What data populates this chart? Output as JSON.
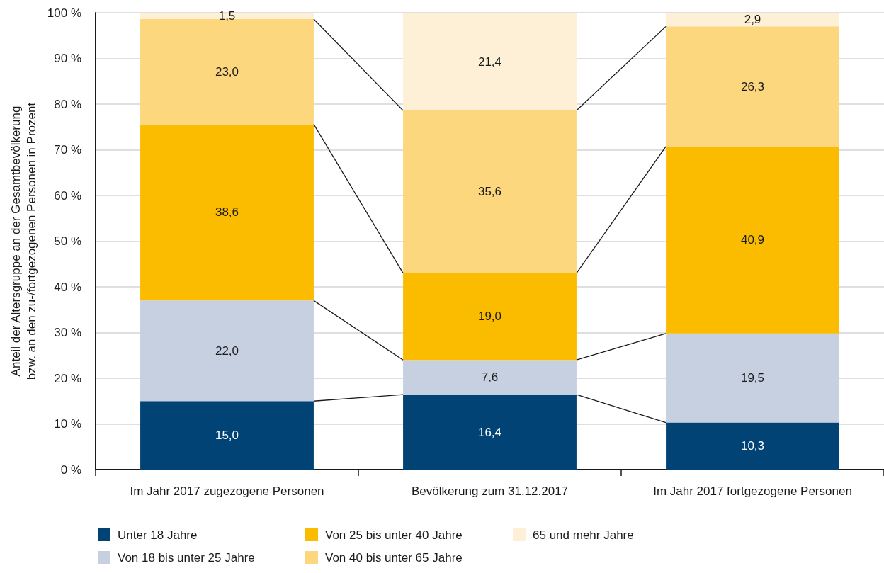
{
  "chart_data": {
    "type": "bar",
    "stacked": true,
    "ylabel": "Anteil der Altersgruppe an der Gesamtbevölkerung\nbzw. an den zu-/fortgezogenen Personen in Prozent",
    "categories": [
      "Im Jahr 2017 zugezogene Personen",
      "Bevölkerung zum 31.12.2017",
      "Im Jahr 2017 fortgezogene Personen"
    ],
    "series": [
      {
        "name": "Unter 18 Jahre",
        "color": "#004374",
        "values": [
          15.0,
          16.4,
          10.3
        ],
        "value_labels": [
          "15,0",
          "16,4",
          "10,3"
        ]
      },
      {
        "name": "Von 18 bis unter 25 Jahre",
        "color": "#c6d0e1",
        "values": [
          22.0,
          7.6,
          19.5
        ],
        "value_labels": [
          "22,0",
          "7,6",
          "19,5"
        ]
      },
      {
        "name": "Von 25 bis unter 40 Jahre",
        "color": "#fbbc00",
        "values": [
          38.6,
          19.0,
          40.9
        ],
        "value_labels": [
          "38,6",
          "19,0",
          "40,9"
        ]
      },
      {
        "name": "Von 40 bis unter 65 Jahre",
        "color": "#fdd77e",
        "values": [
          23.0,
          35.6,
          26.3
        ],
        "value_labels": [
          "23,0",
          "35,6",
          "26,3"
        ]
      },
      {
        "name": "65 und mehr Jahre",
        "color": "#fef0d6",
        "values": [
          1.5,
          21.4,
          2.9
        ],
        "value_labels": [
          "1,5",
          "21,4",
          "2,9"
        ]
      }
    ],
    "ylim": [
      0,
      100
    ],
    "yticks": [
      {
        "value": 0,
        "label": "0 %"
      },
      {
        "value": 10,
        "label": "10 %"
      },
      {
        "value": 20,
        "label": "20 %"
      },
      {
        "value": 30,
        "label": "30 %"
      },
      {
        "value": 40,
        "label": "40 %"
      },
      {
        "value": 50,
        "label": "50 %"
      },
      {
        "value": 60,
        "label": "60 %"
      },
      {
        "value": 70,
        "label": "70 %"
      },
      {
        "value": 80,
        "label": "80 %"
      },
      {
        "value": 90,
        "label": "90 %"
      },
      {
        "value": 100,
        "label": "100 %"
      }
    ],
    "grid": "y",
    "legend": "bottom"
  }
}
